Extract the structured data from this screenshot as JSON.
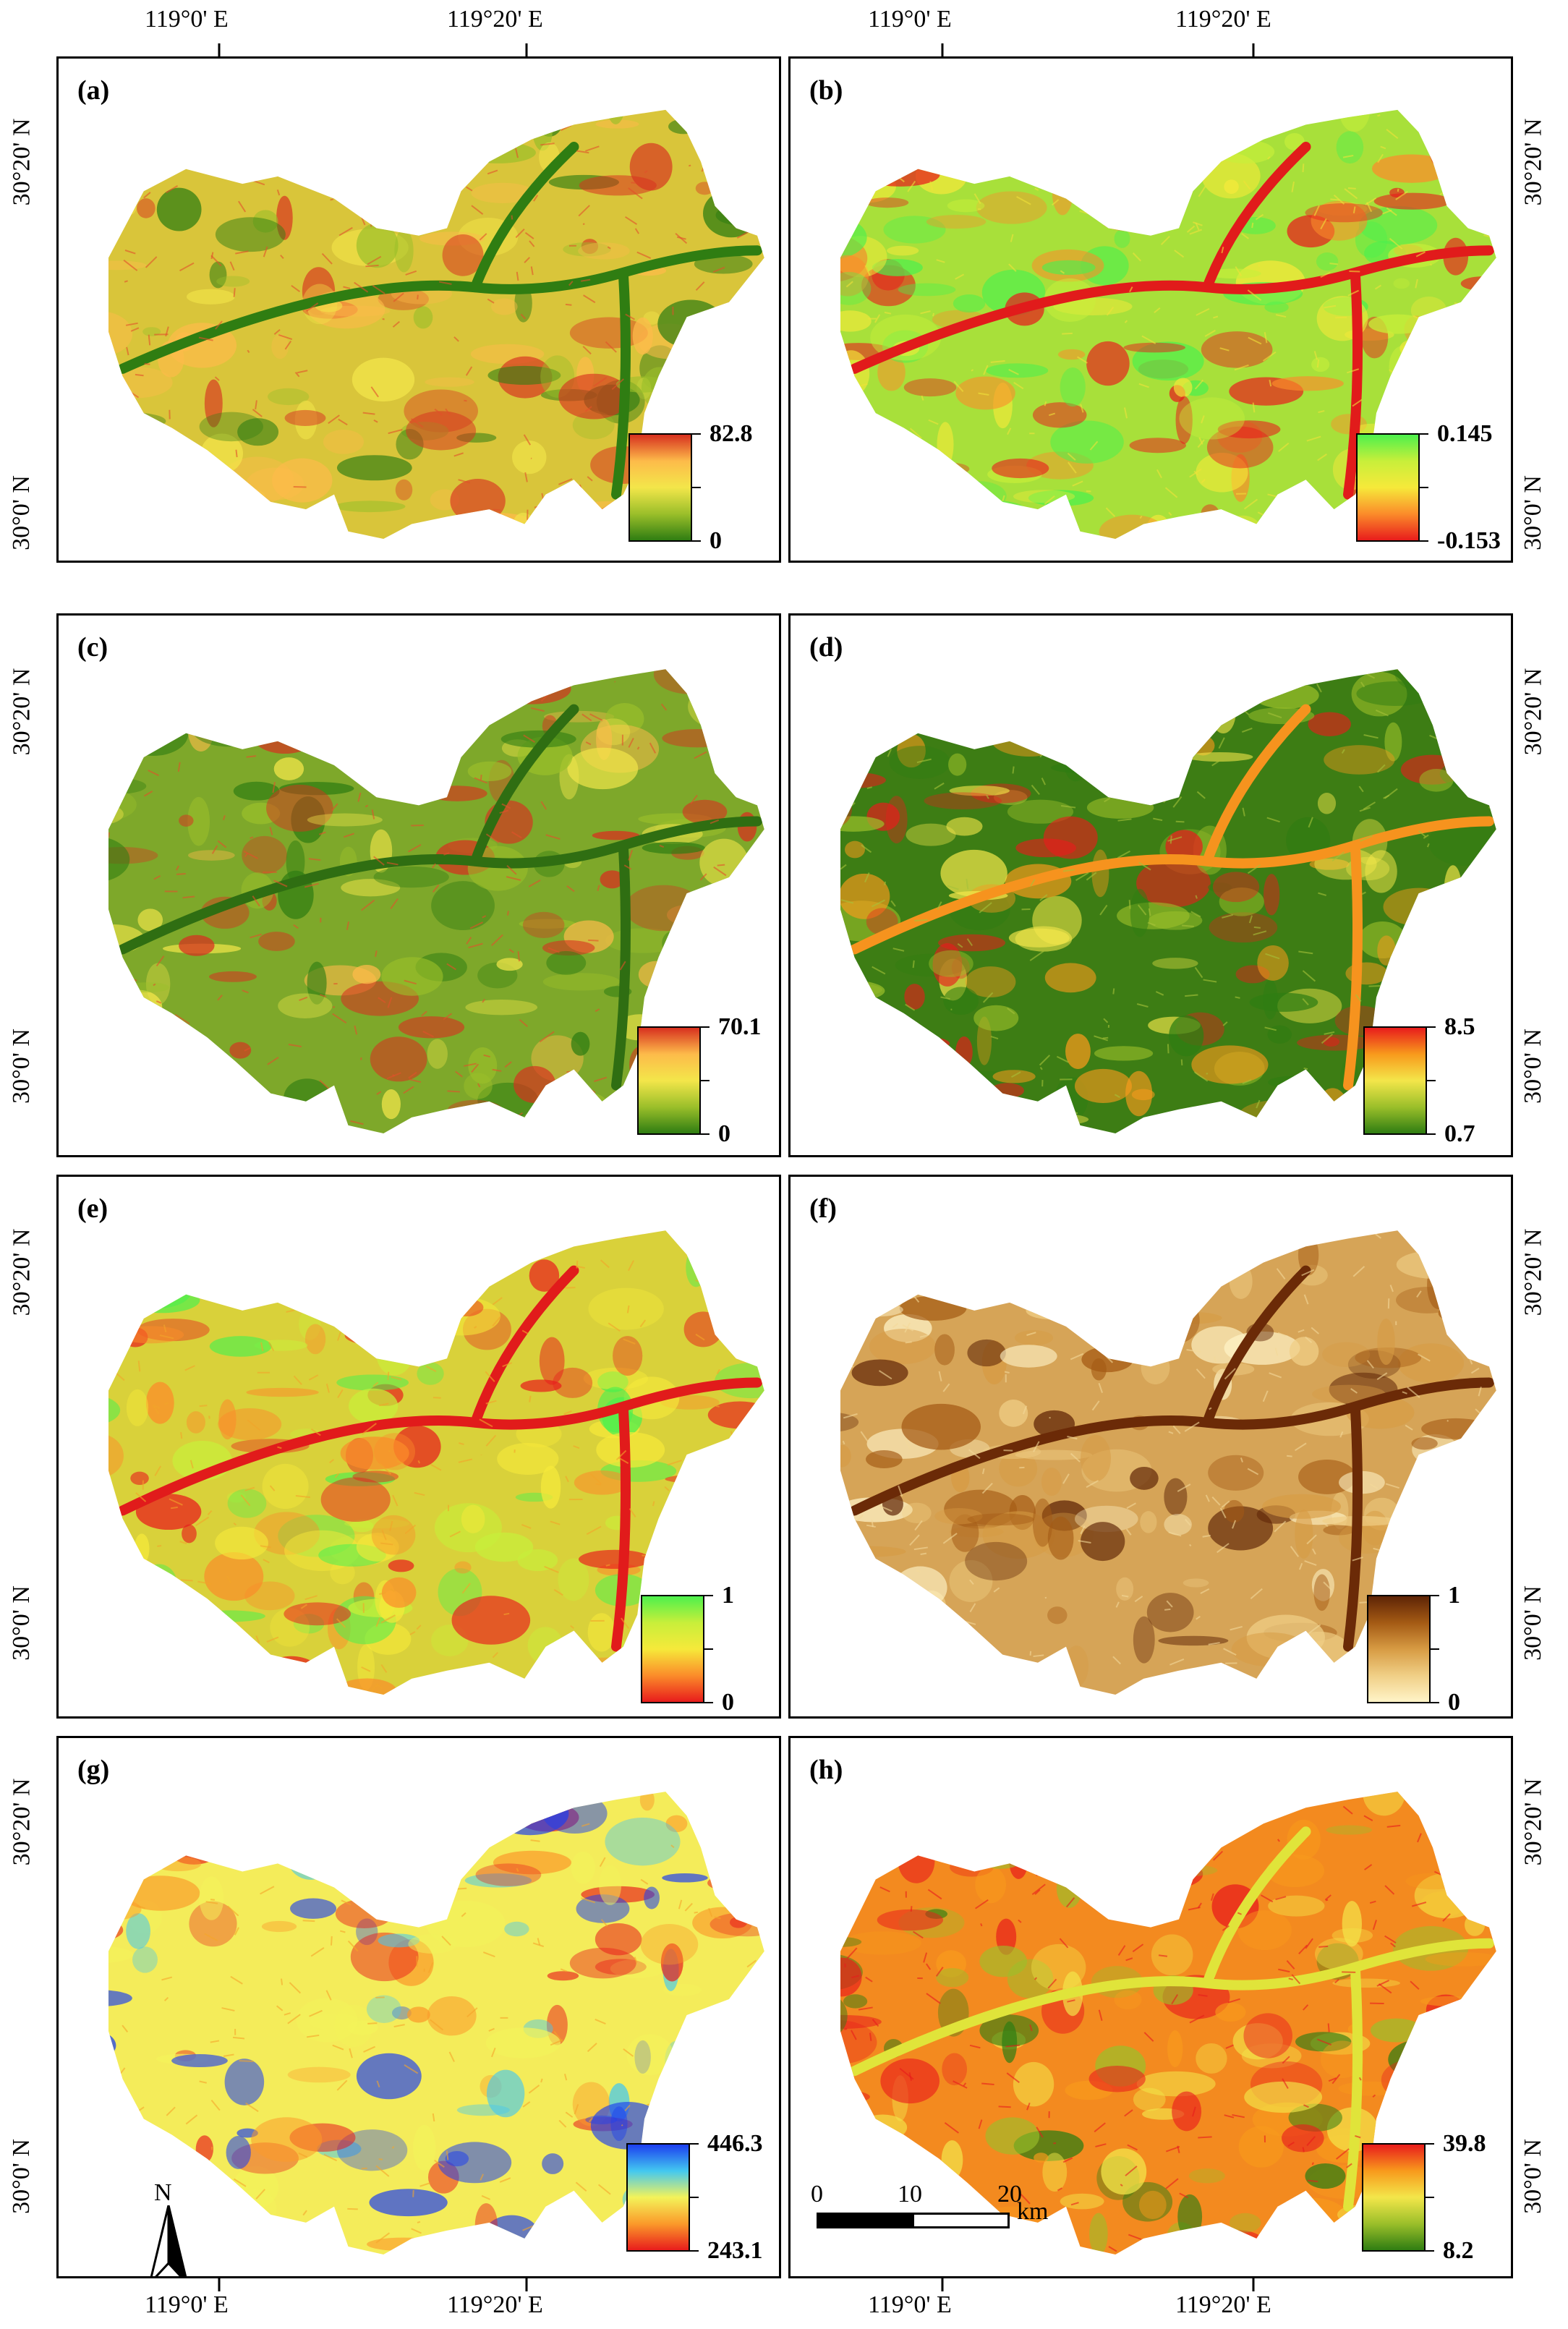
{
  "top_labels": [
    "119°0' E",
    "119°20' E"
  ],
  "bottom_labels": [
    "119°0' E",
    "119°20' E"
  ],
  "left_labels": [
    "30°20' N",
    "30°0' N"
  ],
  "right_labels": [
    "30°20' N",
    "30°0' N"
  ],
  "panels": [
    {
      "id": "a",
      "letter": "(a)",
      "legend_max": "82.8",
      "legend_min": "0",
      "colors": [
        "#d7301f",
        "#fdbb4a",
        "#f3e64a",
        "#9bbf2a",
        "#2f7d12"
      ],
      "base": "#d9c53a",
      "accent": "#2f7d12",
      "streaks": "#e2512a"
    },
    {
      "id": "b",
      "letter": "(b)",
      "legend_max": "0.145",
      "legend_min": "-0.153",
      "colors": [
        "#4df04d",
        "#c8ef3a",
        "#f6e93a",
        "#fb8c2a",
        "#e81c1c"
      ],
      "base": "#a8e03a",
      "accent": "#e11b1b",
      "streaks": "#f0e23a"
    },
    {
      "id": "c",
      "letter": "(c)",
      "legend_max": "70.1",
      "legend_min": "0",
      "colors": [
        "#d7301f",
        "#fdbb4a",
        "#f3e64a",
        "#9bbf2a",
        "#2f7d12"
      ],
      "base": "#7ea82a",
      "accent": "#2f6e12",
      "streaks": "#e2512a"
    },
    {
      "id": "d",
      "letter": "(d)",
      "legend_max": "8.5",
      "legend_min": "0.7",
      "colors": [
        "#e81c1c",
        "#f89a1c",
        "#f3e64a",
        "#9bbf2a",
        "#2f7d12"
      ],
      "base": "#3d7d14",
      "accent": "#f6931e",
      "streaks": "#a6c23a"
    },
    {
      "id": "e",
      "letter": "(e)",
      "legend_max": "1",
      "legend_min": "0",
      "colors": [
        "#4df04d",
        "#c8ef3a",
        "#f6e93a",
        "#fb8c2a",
        "#e81c1c"
      ],
      "base": "#d9d13a",
      "accent": "#e11b1b",
      "streaks": "#f2a52a"
    },
    {
      "id": "f",
      "letter": "(f)",
      "legend_max": "1",
      "legend_min": "0",
      "colors": [
        "#5e2406",
        "#a45a14",
        "#d79b43",
        "#f0cf86",
        "#fff4c8"
      ],
      "base": "#d6a457",
      "accent": "#6b2a07",
      "streaks": "#f3d99a"
    },
    {
      "id": "g",
      "letter": "(g)",
      "legend_max": "446.3",
      "legend_min": "243.1",
      "colors": [
        "#1c3ef0",
        "#43c8f0",
        "#f3f35a",
        "#fb9a2a",
        "#e81c1c"
      ],
      "base": "#f4ec5a",
      "accent": "#5ac8f0",
      "streaks": "#f6a52a"
    },
    {
      "id": "h",
      "letter": "(h)",
      "legend_max": "39.8",
      "legend_min": "8.2",
      "colors": [
        "#e81c1c",
        "#f89a1c",
        "#f3e64a",
        "#9bbf2a",
        "#2f7d12"
      ],
      "base": "#f38a1f",
      "accent": "#e0e43a",
      "streaks": "#e81c1c"
    }
  ],
  "scale_bar": {
    "labels": [
      "0",
      "10",
      "20"
    ],
    "unit": "km"
  },
  "north_arrow": {
    "label": "N",
    "icon": "north-arrow-icon"
  }
}
